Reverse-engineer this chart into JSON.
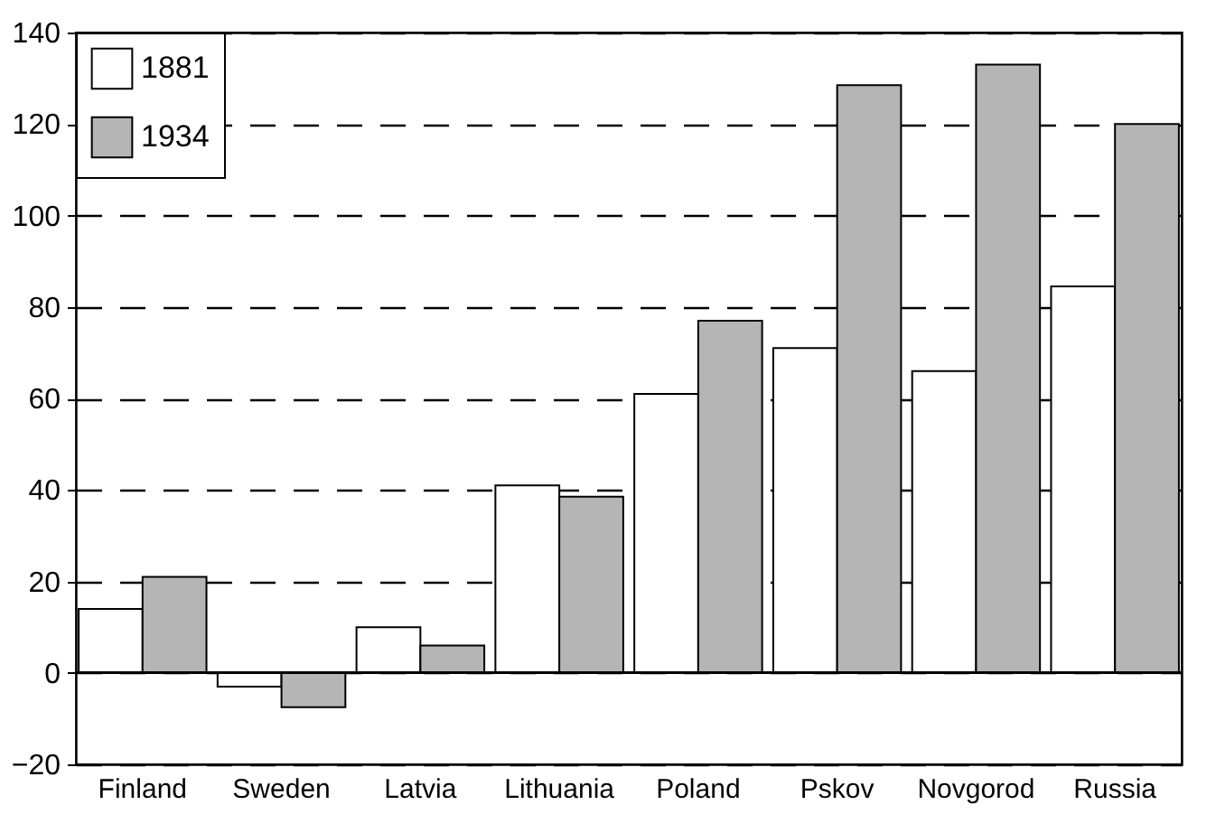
{
  "chart_data": {
    "type": "bar",
    "categories": [
      "Finland",
      "Sweden",
      "Latvia",
      "Lithuania",
      "Poland",
      "Pskov",
      "Novgorod",
      "Russia"
    ],
    "series": [
      {
        "name": "1881",
        "color": "#ffffff",
        "values": [
          14,
          -3,
          10,
          41,
          61,
          71,
          66,
          84.5
        ]
      },
      {
        "name": "1934",
        "color": "#b5b5b5",
        "values": [
          21,
          -7.5,
          6,
          38.5,
          77,
          128.5,
          133,
          120
        ]
      }
    ],
    "ylim": [
      -20,
      140
    ],
    "yticks": [
      -20,
      0,
      20,
      40,
      60,
      80,
      100,
      120,
      140
    ],
    "grid": "y",
    "legend": "top left",
    "ref_lines": [
      {
        "axis": "y",
        "value": 0
      }
    ]
  }
}
